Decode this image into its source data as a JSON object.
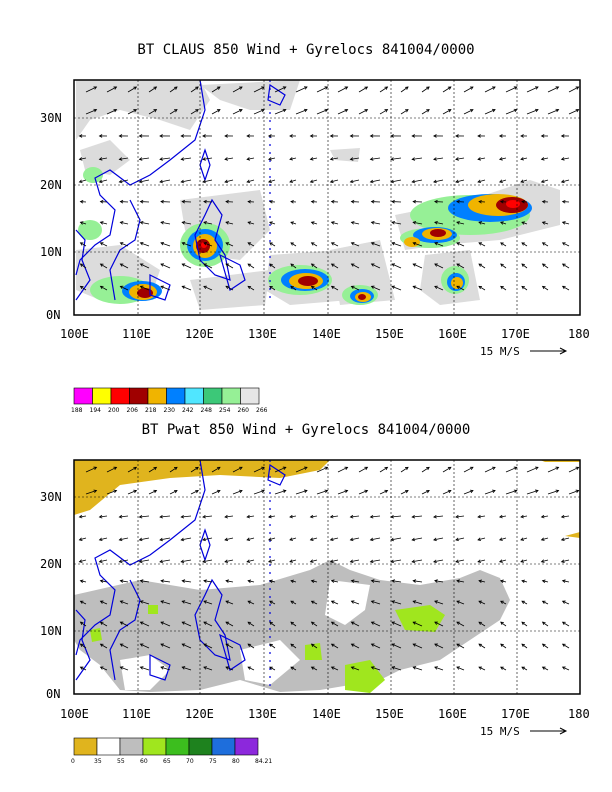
{
  "panels": [
    {
      "title": "BT CLAUS 850 Wind + Gyrelocs 841004/0000",
      "y_ticks": [
        "30N",
        "20N",
        "10N",
        "0N"
      ],
      "x_ticks": [
        "100E",
        "110E",
        "120E",
        "130E",
        "140E",
        "150E",
        "160E",
        "170E",
        "180"
      ],
      "scale_label": "15 M/S",
      "colorbar": {
        "labels": [
          "188",
          "194",
          "200",
          "206",
          "218",
          "230",
          "242",
          "248",
          "254",
          "260",
          "266"
        ],
        "colors": [
          "#ff00ff",
          "#ffff00",
          "#ff0000",
          "#a00000",
          "#f0b400",
          "#0080ff",
          "#50e6ff",
          "#3cc878",
          "#96f096",
          "#e6e6e6"
        ]
      }
    },
    {
      "title": "BT Pwat 850 Wind + Gyrelocs 841004/0000",
      "y_ticks": [
        "30N",
        "20N",
        "10N",
        "0N"
      ],
      "x_ticks": [
        "100E",
        "110E",
        "120E",
        "130E",
        "140E",
        "150E",
        "160E",
        "170E",
        "180"
      ],
      "scale_label": "15 M/S",
      "colorbar": {
        "labels": [
          "0",
          "35",
          "55",
          "60",
          "65",
          "70",
          "75",
          "80",
          "84.21"
        ],
        "colors": [
          "#e0b41e",
          "#ffffff",
          "#bebebe",
          "#a0e61e",
          "#3cbe1e",
          "#1e821e",
          "#1e6edc",
          "#8c28dc"
        ]
      }
    }
  ]
}
